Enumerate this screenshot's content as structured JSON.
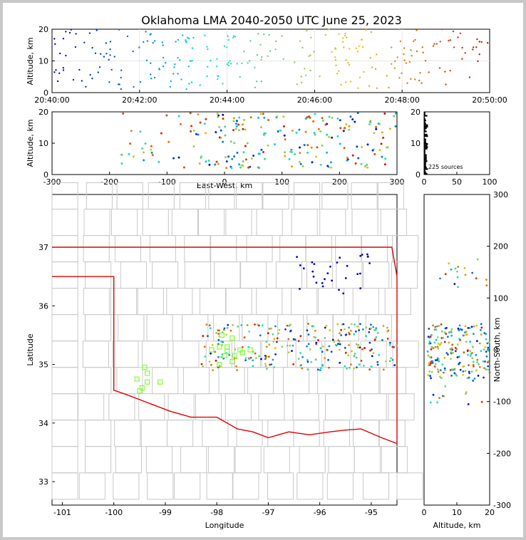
{
  "chart_data": {
    "type": "scatter",
    "title": "Oklahoma LMA 2040-2050 UTC June 25, 2023",
    "panels": {
      "time_altitude": {
        "ylabel": "Altitude, km",
        "x_ticks": [
          "20:40:00",
          "20:42:00",
          "20:44:00",
          "20:46:00",
          "20:48:00",
          "20:50:00"
        ],
        "y_ticks": [
          "0",
          "10",
          "20"
        ],
        "xlim_minutes": [
          0,
          10
        ],
        "ylim": [
          0,
          20
        ]
      },
      "ew_altitude": {
        "xlabel": "East-West, km",
        "ylabel": "Altitude, km",
        "x_ticks": [
          "-300",
          "-200",
          "-100",
          "0",
          "100",
          "200",
          "300"
        ],
        "y_ticks": [
          "0",
          "10",
          "20"
        ],
        "xlim": [
          -300,
          300
        ],
        "ylim": [
          0,
          20
        ]
      },
      "histogram": {
        "x_ticks": [
          "0",
          "50",
          "100"
        ],
        "y_ticks": [
          "0",
          "10",
          "20"
        ],
        "annotation": "225 sources",
        "xlim": [
          0,
          100
        ],
        "ylim": [
          0,
          20
        ]
      },
      "plan_view": {
        "xlabel": "Longitude",
        "ylabel": "Latitude",
        "x_ticks": [
          "-101",
          "-100",
          "-99",
          "-98",
          "-97",
          "-96",
          "-95"
        ],
        "y_ticks": [
          "33",
          "34",
          "35",
          "36",
          "37"
        ],
        "xlim": [
          -101.2,
          -94.5
        ],
        "ylim": [
          32.6,
          37.9
        ]
      },
      "ns_altitude": {
        "xlabel": "Altitude, km",
        "ylabel": "North-South, km",
        "x_ticks": [
          "0",
          "10",
          "20"
        ],
        "y_ticks": [
          "-300",
          "-200",
          "-100",
          "0",
          "100",
          "200",
          "300"
        ],
        "xlim": [
          0,
          20
        ],
        "ylim": [
          -300,
          300
        ]
      }
    },
    "stations": [
      [
        -97.9,
        35.5
      ],
      [
        -97.7,
        35.45
      ],
      [
        -97.8,
        35.3
      ],
      [
        -97.95,
        35.3
      ],
      [
        -98.1,
        35.25
      ],
      [
        -97.55,
        35.25
      ],
      [
        -97.65,
        35.15
      ],
      [
        -97.7,
        35.05
      ],
      [
        -97.95,
        35.0
      ],
      [
        -99.4,
        34.95
      ],
      [
        -99.35,
        34.85
      ],
      [
        -99.55,
        34.75
      ],
      [
        -99.35,
        34.7
      ],
      [
        -99.1,
        34.7
      ],
      [
        -99.45,
        34.6
      ],
      [
        -99.5,
        34.55
      ],
      [
        -97.85,
        35.15
      ],
      [
        -97.5,
        35.2
      ],
      [
        -97.8,
        35.22
      ],
      [
        -97.35,
        35.25
      ]
    ],
    "source_count": 225,
    "colors": {
      "start": "#0000c8",
      "mid": "#00e0e0",
      "late": "#f0c000",
      "end": "#d00000",
      "station": "#80ff30",
      "state_border": "#e00000",
      "county": "#c8c8c8",
      "background": "#c8c8c8"
    }
  }
}
